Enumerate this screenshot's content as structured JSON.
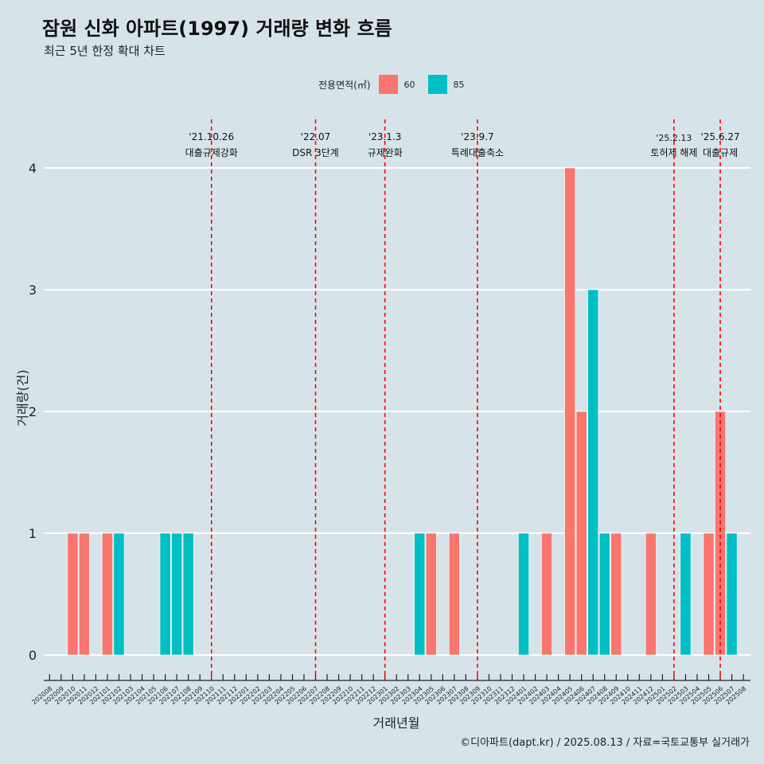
{
  "title": "잠원 신화 아파트(1997) 거래량 변화 흐름",
  "subtitle": "최근 5년 한정 확대 차트",
  "caption": "©디아파트(dapt.kr) / 2025.08.13 / 자료=국토교통부 실거래가",
  "colors": {
    "area60": "#F8766D",
    "area85": "#00BFC4",
    "grid": "#ffffff",
    "vline": "#ff0000"
  },
  "legend": {
    "title": "전용면적(㎡)",
    "items": [
      "60",
      "85"
    ]
  },
  "chart_data": {
    "type": "bar",
    "xlabel": "거래년월",
    "ylabel": "거래량(건)",
    "ylim": [
      0,
      4
    ],
    "yticks": [
      0,
      1,
      2,
      3,
      4
    ],
    "grid": true,
    "legend_position": "top",
    "categories": [
      "202008",
      "202009",
      "202010",
      "202011",
      "202012",
      "202101",
      "202102",
      "202103",
      "202104",
      "202105",
      "202106",
      "202107",
      "202108",
      "202109",
      "202110",
      "202111",
      "202112",
      "202201",
      "202202",
      "202203",
      "202204",
      "202205",
      "202206",
      "202207",
      "202208",
      "202209",
      "202210",
      "202211",
      "202212",
      "202301",
      "202302",
      "202303",
      "202304",
      "202305",
      "202306",
      "202307",
      "202308",
      "202309",
      "202310",
      "202311",
      "202312",
      "202401",
      "202402",
      "202403",
      "202404",
      "202405",
      "202406",
      "202407",
      "202408",
      "202409",
      "202410",
      "202411",
      "202412",
      "202501",
      "202502",
      "202503",
      "202504",
      "202505",
      "202506",
      "202507",
      "202508"
    ],
    "series": [
      {
        "name": "60",
        "values": [
          0,
          0,
          1,
          1,
          0,
          1,
          0,
          0,
          0,
          0,
          0,
          0,
          0,
          0,
          0,
          0,
          0,
          0,
          0,
          0,
          0,
          0,
          0,
          0,
          0,
          0,
          0,
          0,
          0,
          0,
          0,
          0,
          0,
          1,
          0,
          1,
          0,
          0,
          0,
          0,
          0,
          0,
          0,
          1,
          0,
          4,
          2,
          0,
          1,
          1,
          0,
          0,
          1,
          0,
          0,
          0,
          0,
          1,
          2,
          0,
          0
        ]
      },
      {
        "name": "85",
        "values": [
          0,
          0,
          0,
          0,
          0,
          0,
          1,
          0,
          0,
          0,
          1,
          1,
          1,
          0,
          0,
          0,
          0,
          0,
          0,
          0,
          0,
          0,
          0,
          0,
          0,
          0,
          0,
          0,
          0,
          0,
          0,
          0,
          1,
          0,
          0,
          0,
          0,
          0,
          0,
          0,
          0,
          1,
          0,
          0,
          0,
          0,
          0,
          3,
          1,
          0,
          0,
          0,
          0,
          0,
          0,
          1,
          0,
          0,
          0,
          1,
          0
        ]
      }
    ],
    "annotations": [
      {
        "date_label": "'21.10.26",
        "text": "대출규제강화",
        "x": "202110"
      },
      {
        "date_label": "'22.07",
        "text": "DSR 3단계",
        "x": "202207"
      },
      {
        "date_label": "'23.1.3",
        "text": "규제완화",
        "x": "202301"
      },
      {
        "date_label": "'23.9.7",
        "text": "특례대출축소",
        "x": "202309"
      },
      {
        "date_label": "'25.2.13",
        "text": "토허제 해제",
        "x": "202502"
      },
      {
        "date_label": "'25.6.27",
        "text": "대출규제",
        "x": "202506"
      }
    ]
  }
}
